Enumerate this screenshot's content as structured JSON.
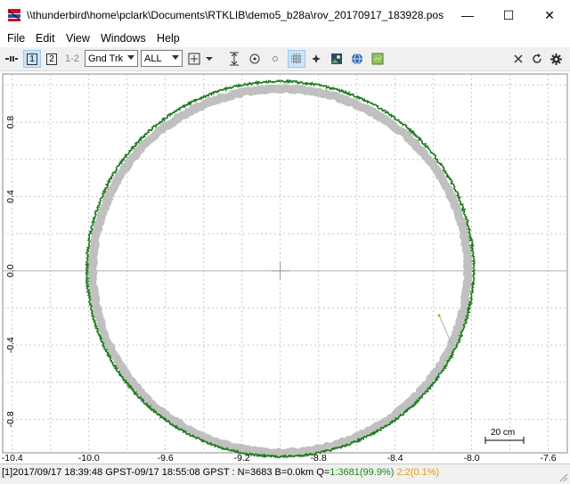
{
  "window": {
    "title": "\\\\thunderbird\\home\\pclark\\Documents\\RTKLIB\\demo5_b28a\\rov_20170917_183928.pos",
    "minimize_glyph": "—",
    "maximize_glyph": "☐",
    "close_glyph": "✕"
  },
  "menu": [
    "File",
    "Edit",
    "View",
    "Windows",
    "Help"
  ],
  "toolbar": {
    "btn1": "1",
    "btn2": "2",
    "btn12": "1-2",
    "plot_type": "Gnd Trk",
    "sat_filter": "ALL"
  },
  "icons": [
    "connect-icon",
    "crosshair-icon",
    "dropdown-icon",
    "fit-vertical-icon",
    "center-icon",
    "dot-icon",
    "grid-icon",
    "point-icon",
    "image-icon",
    "globe-icon",
    "map-icon",
    "close-icon",
    "reload-icon",
    "settings-icon"
  ],
  "chart_data": {
    "type": "scatter",
    "title": "",
    "xlabel": "",
    "ylabel": "",
    "xlim": [
      -10.45,
      -7.5
    ],
    "ylim": [
      -0.98,
      1.06
    ],
    "xticks": [
      -10.4,
      -10.0,
      -9.6,
      -9.2,
      -8.8,
      -8.4,
      -8.0,
      -7.6
    ],
    "xtick_labels": [
      "-10.4",
      "-10.0",
      "-9.6",
      "-9.2",
      "-8.8",
      "-8.4",
      "-8.0",
      "-7.6"
    ],
    "yticks": [
      -0.8,
      -0.4,
      0.0,
      0.4,
      0.8
    ],
    "ytick_labels": [
      "-0.8",
      "-0.4",
      "0.0",
      "0.4",
      "0.8"
    ],
    "grid": true,
    "scale_label": "20 cm",
    "series": [
      {
        "color": "#c0c0c0",
        "center": [
          -9.0,
          0.0
        ],
        "radius_x": 0.98,
        "radius_y": 0.98
      },
      {
        "color": "#1a7a1a",
        "center": [
          -9.0,
          0.01
        ],
        "radius_x": 1.01,
        "radius_y": 1.01
      }
    ],
    "float_points": [
      [
        -8.17,
        -0.24
      ]
    ]
  },
  "status": {
    "prefix": "[1]2017/09/17 18:39:48 GPST-09/17 18:55:08 GPST : N=3683 B=0.0km Q=",
    "q1": "1:3681(99.9%)",
    "q2": "2:2(0.1%)",
    "q1_color": "#1a8a1a",
    "q2_color": "#e0a000"
  }
}
